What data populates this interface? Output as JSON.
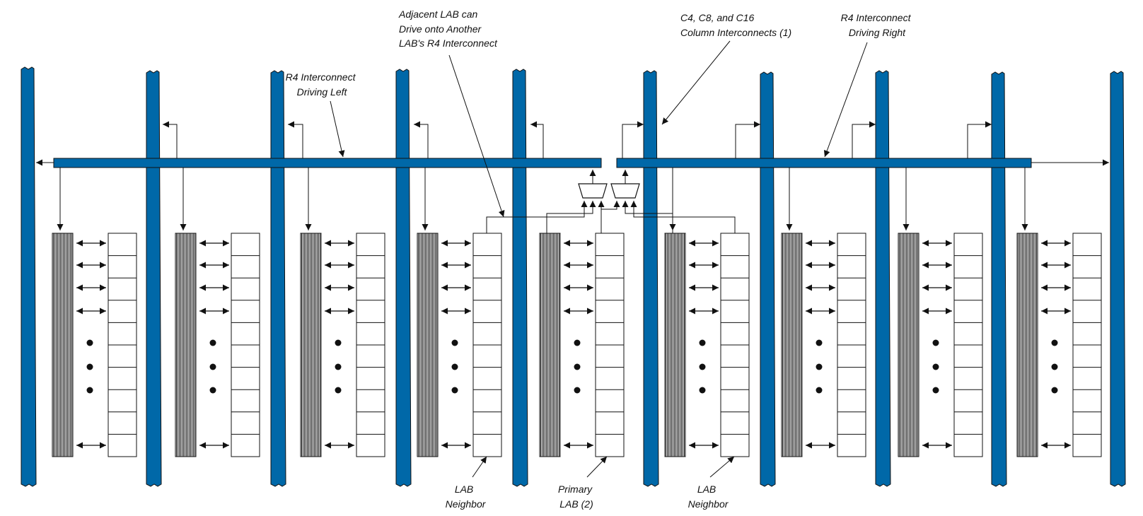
{
  "colors": {
    "interconnect": "#0068a8",
    "line": "#111111",
    "background": "#ffffff"
  },
  "labels": {
    "adjacent": [
      "Adjacent LAB can",
      "Drive onto Another",
      "LAB's R4 Interconnect"
    ],
    "column": [
      "C4, C8, and C16",
      "Column Interconnects (1)"
    ],
    "r4_left": [
      "R4 Interconnect",
      "Driving Left"
    ],
    "r4_right": [
      "R4 Interconnect",
      "Driving Right"
    ],
    "lab_neighbor_left": [
      "LAB",
      "Neighbor"
    ],
    "primary_lab": [
      "Primary",
      "LAB (2)"
    ],
    "lab_neighbor_right": [
      "LAB",
      "Neighbor"
    ]
  },
  "lab_count": 9,
  "primary_lab_index": 4,
  "column_count": 10
}
